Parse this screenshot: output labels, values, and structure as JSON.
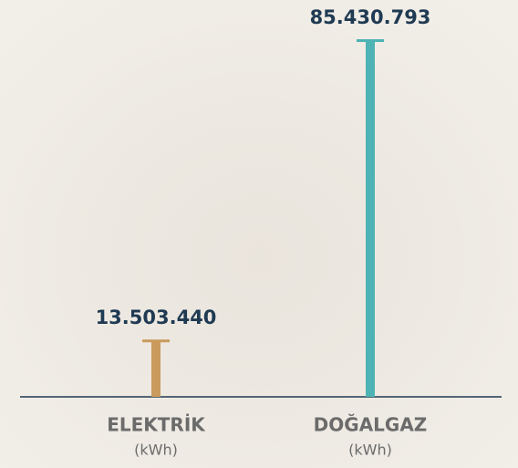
{
  "chart_data": {
    "type": "bar",
    "categories": [
      "ELEKTRİK",
      "DOĞALGAZ"
    ],
    "units": [
      "(kWh)",
      "(kWh)"
    ],
    "values": [
      13503440,
      85430793
    ],
    "value_labels": [
      "13.503.440",
      "85.430.793"
    ],
    "colors": [
      "#c99a5b",
      "#4db3b4"
    ]
  }
}
